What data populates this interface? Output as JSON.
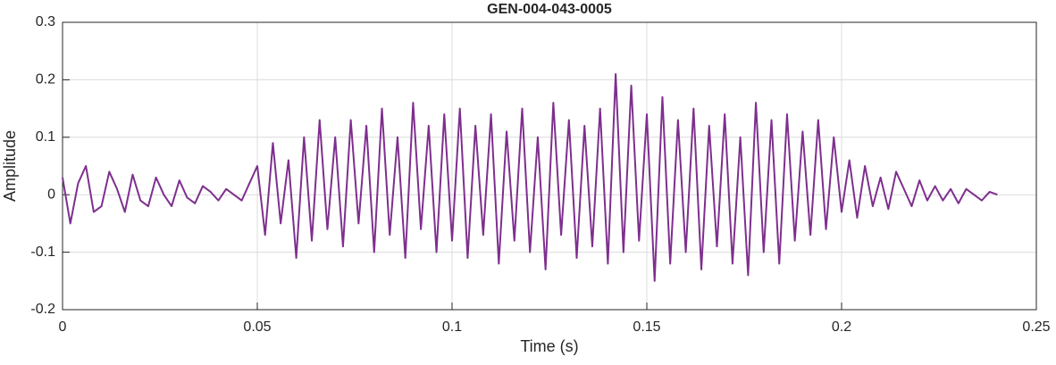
{
  "chart_data": {
    "type": "line",
    "title": "GEN-004-043-0005",
    "xlabel": "Time (s)",
    "ylabel": "Amplitude",
    "color": "#7e2f8e",
    "grid": true,
    "xlim": [
      0,
      0.25
    ],
    "xticks": [
      0,
      0.05,
      0.1,
      0.15,
      0.2,
      0.25
    ],
    "ylim": [
      -0.2,
      0.3
    ],
    "yticks": [
      -0.2,
      -0.1,
      0,
      0.1,
      0.2,
      0.3
    ],
    "x": [
      0,
      0.002,
      0.004,
      0.006,
      0.008,
      0.01,
      0.012,
      0.014,
      0.016,
      0.018,
      0.02,
      0.022,
      0.024,
      0.026,
      0.028,
      0.03,
      0.032,
      0.034,
      0.036,
      0.038,
      0.04,
      0.042,
      0.044,
      0.046,
      0.048,
      0.05,
      0.052,
      0.054,
      0.056,
      0.058,
      0.06,
      0.062,
      0.064,
      0.066,
      0.068,
      0.07,
      0.072,
      0.074,
      0.076,
      0.078,
      0.08,
      0.082,
      0.084,
      0.086,
      0.088,
      0.09,
      0.092,
      0.094,
      0.096,
      0.098,
      0.1,
      0.102,
      0.104,
      0.106,
      0.108,
      0.11,
      0.112,
      0.114,
      0.116,
      0.118,
      0.12,
      0.122,
      0.124,
      0.126,
      0.128,
      0.13,
      0.132,
      0.134,
      0.136,
      0.138,
      0.14,
      0.142,
      0.144,
      0.146,
      0.148,
      0.15,
      0.152,
      0.154,
      0.156,
      0.158,
      0.16,
      0.162,
      0.164,
      0.166,
      0.168,
      0.17,
      0.172,
      0.174,
      0.176,
      0.178,
      0.18,
      0.182,
      0.184,
      0.186,
      0.188,
      0.19,
      0.192,
      0.194,
      0.196,
      0.198,
      0.2,
      0.202,
      0.204,
      0.206,
      0.208,
      0.21,
      0.212,
      0.214,
      0.216,
      0.218,
      0.22,
      0.222,
      0.224,
      0.226,
      0.228,
      0.23,
      0.232,
      0.234,
      0.236,
      0.238,
      0.24
    ],
    "values": [
      0.03,
      -0.05,
      0.02,
      0.05,
      -0.03,
      -0.02,
      0.04,
      0.01,
      -0.03,
      0.035,
      -0.01,
      -0.02,
      0.03,
      0,
      -0.02,
      0.025,
      -0.005,
      -0.015,
      0.015,
      0.005,
      -0.01,
      0.01,
      0,
      -0.01,
      0.02,
      0.05,
      -0.07,
      0.09,
      -0.05,
      0.06,
      -0.11,
      0.1,
      -0.08,
      0.13,
      -0.06,
      0.1,
      -0.09,
      0.13,
      -0.05,
      0.12,
      -0.1,
      0.15,
      -0.07,
      0.1,
      -0.11,
      0.16,
      -0.06,
      0.12,
      -0.1,
      0.14,
      -0.08,
      0.15,
      -0.11,
      0.12,
      -0.07,
      0.14,
      -0.12,
      0.11,
      -0.08,
      0.15,
      -0.1,
      0.1,
      -0.13,
      0.16,
      -0.07,
      0.13,
      -0.11,
      0.12,
      -0.09,
      0.15,
      -0.12,
      0.21,
      -0.1,
      0.19,
      -0.08,
      0.14,
      -0.15,
      0.17,
      -0.12,
      0.13,
      -0.1,
      0.15,
      -0.13,
      0.12,
      -0.09,
      0.14,
      -0.12,
      0.1,
      -0.14,
      0.16,
      -0.1,
      0.13,
      -0.12,
      0.14,
      -0.08,
      0.11,
      -0.07,
      0.13,
      -0.06,
      0.1,
      -0.03,
      0.06,
      -0.04,
      0.05,
      -0.02,
      0.03,
      -0.025,
      0.04,
      0.01,
      -0.02,
      0.025,
      -0.01,
      0.015,
      -0.01,
      0.01,
      -0.015,
      0.01,
      0,
      -0.01,
      0.005,
      0
    ]
  }
}
